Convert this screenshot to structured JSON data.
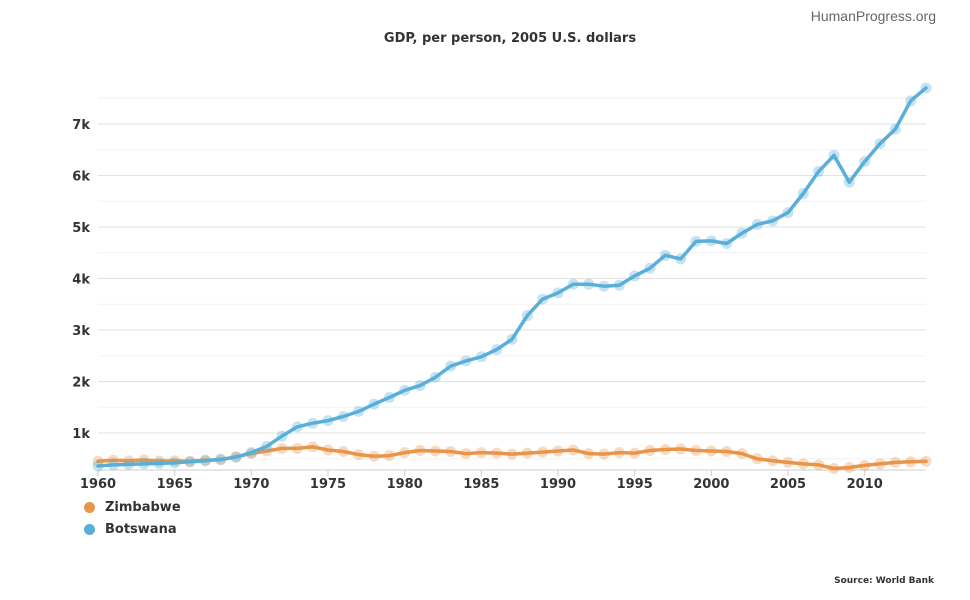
{
  "credit": "HumanProgress.org",
  "source": "Source: World Bank",
  "chart_data": {
    "type": "line",
    "title": "GDP, per person, 2005 U.S. dollars",
    "xlabel": "",
    "ylabel": "",
    "xlim": [
      1960,
      2014
    ],
    "ylim": [
      0,
      8000
    ],
    "x_ticks": [
      1960,
      1965,
      1970,
      1975,
      1980,
      1985,
      1990,
      1995,
      2000,
      2005,
      2010
    ],
    "x_tick_labels": [
      "1960",
      "1965",
      "1970",
      "1975",
      "1980",
      "1985",
      "1990",
      "1995",
      "2000",
      "2005",
      "2010"
    ],
    "y_ticks": [
      1000,
      2000,
      3000,
      4000,
      5000,
      6000,
      7000
    ],
    "y_tick_labels": [
      "1k",
      "2k",
      "3k",
      "4k",
      "5k",
      "6k",
      "7k"
    ],
    "grid": true,
    "legend_position": "bottom-left",
    "x": [
      1960,
      1961,
      1962,
      1963,
      1964,
      1965,
      1966,
      1967,
      1968,
      1969,
      1970,
      1971,
      1972,
      1973,
      1974,
      1975,
      1976,
      1977,
      1978,
      1979,
      1980,
      1981,
      1982,
      1983,
      1984,
      1985,
      1986,
      1987,
      1988,
      1989,
      1990,
      1991,
      1992,
      1993,
      1994,
      1995,
      1996,
      1997,
      1998,
      1999,
      2000,
      2001,
      2002,
      2003,
      2004,
      2005,
      2006,
      2007,
      2008,
      2009,
      2010,
      2011,
      2012,
      2013,
      2014
    ],
    "series": [
      {
        "name": "Zimbabwe",
        "color": "#e8954a",
        "values": [
          450,
          470,
          460,
          475,
          455,
          460,
          450,
          470,
          480,
          540,
          600,
          650,
          700,
          700,
          730,
          670,
          640,
          580,
          550,
          560,
          620,
          660,
          650,
          640,
          600,
          620,
          610,
          590,
          610,
          630,
          650,
          670,
          600,
          590,
          620,
          610,
          660,
          680,
          690,
          660,
          650,
          640,
          600,
          500,
          460,
          430,
          400,
          380,
          310,
          330,
          370,
          400,
          430,
          440,
          450
        ]
      },
      {
        "name": "Botswana",
        "color": "#5aafd8",
        "values": [
          360,
          380,
          390,
          400,
          410,
          420,
          440,
          460,
          490,
          530,
          620,
          740,
          940,
          1120,
          1190,
          1240,
          1320,
          1420,
          1560,
          1690,
          1830,
          1920,
          2080,
          2300,
          2400,
          2480,
          2620,
          2820,
          3280,
          3600,
          3720,
          3890,
          3890,
          3850,
          3870,
          4050,
          4200,
          4450,
          4380,
          4720,
          4730,
          4680,
          4880,
          5050,
          5120,
          5280,
          5650,
          6080,
          6390,
          5870,
          6270,
          6620,
          6900,
          7450,
          7700
        ]
      }
    ]
  }
}
